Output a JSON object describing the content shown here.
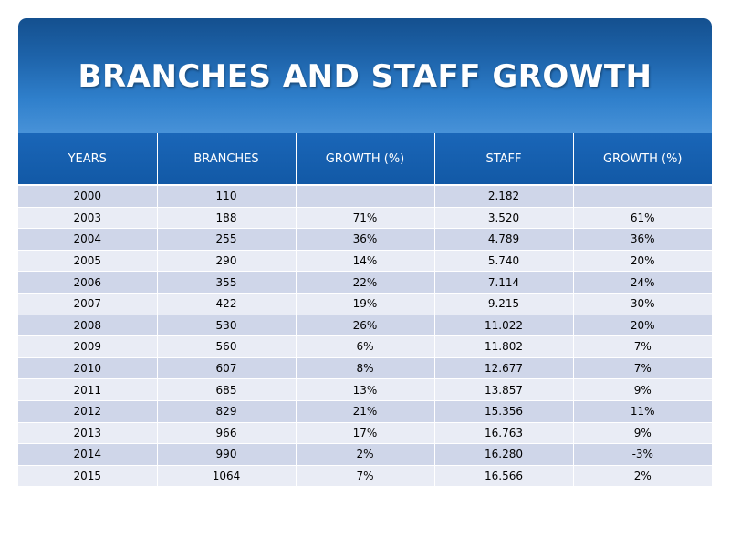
{
  "title": "BRANCHES AND STAFF GROWTH",
  "table": {
    "headers": [
      "YEARS",
      "BRANCHES",
      "GROWTH (%)",
      "STAFF",
      "GROWTH (%)"
    ],
    "rows": [
      [
        "2000",
        "110",
        "",
        "2.182",
        ""
      ],
      [
        "2003",
        "188",
        "71%",
        "3.520",
        "61%"
      ],
      [
        "2004",
        "255",
        "36%",
        "4.789",
        "36%"
      ],
      [
        "2005",
        "290",
        "14%",
        "5.740",
        "20%"
      ],
      [
        "2006",
        "355",
        "22%",
        "7.114",
        "24%"
      ],
      [
        "2007",
        "422",
        "19%",
        "9.215",
        "30%"
      ],
      [
        "2008",
        "530",
        "26%",
        "11.022",
        "20%"
      ],
      [
        "2009",
        "560",
        "6%",
        "11.802",
        "7%"
      ],
      [
        "2010",
        "607",
        "8%",
        "12.677",
        "7%"
      ],
      [
        "2011",
        "685",
        "13%",
        "13.857",
        "9%"
      ],
      [
        "2012",
        "829",
        "21%",
        "15.356",
        "11%"
      ],
      [
        "2013",
        "966",
        "17%",
        "16.763",
        "9%"
      ],
      [
        "2014",
        "990",
        "2%",
        "16.280",
        "-3%"
      ],
      [
        "2015",
        "1064",
        "7%",
        "16.566",
        "2%"
      ]
    ]
  },
  "colors": {
    "banner_top": "#14508f",
    "banner_bottom": "#4892d8",
    "header_cell": "#1a66b8",
    "row_dark": "#cfd6e9",
    "row_light": "#e9ecf5"
  }
}
